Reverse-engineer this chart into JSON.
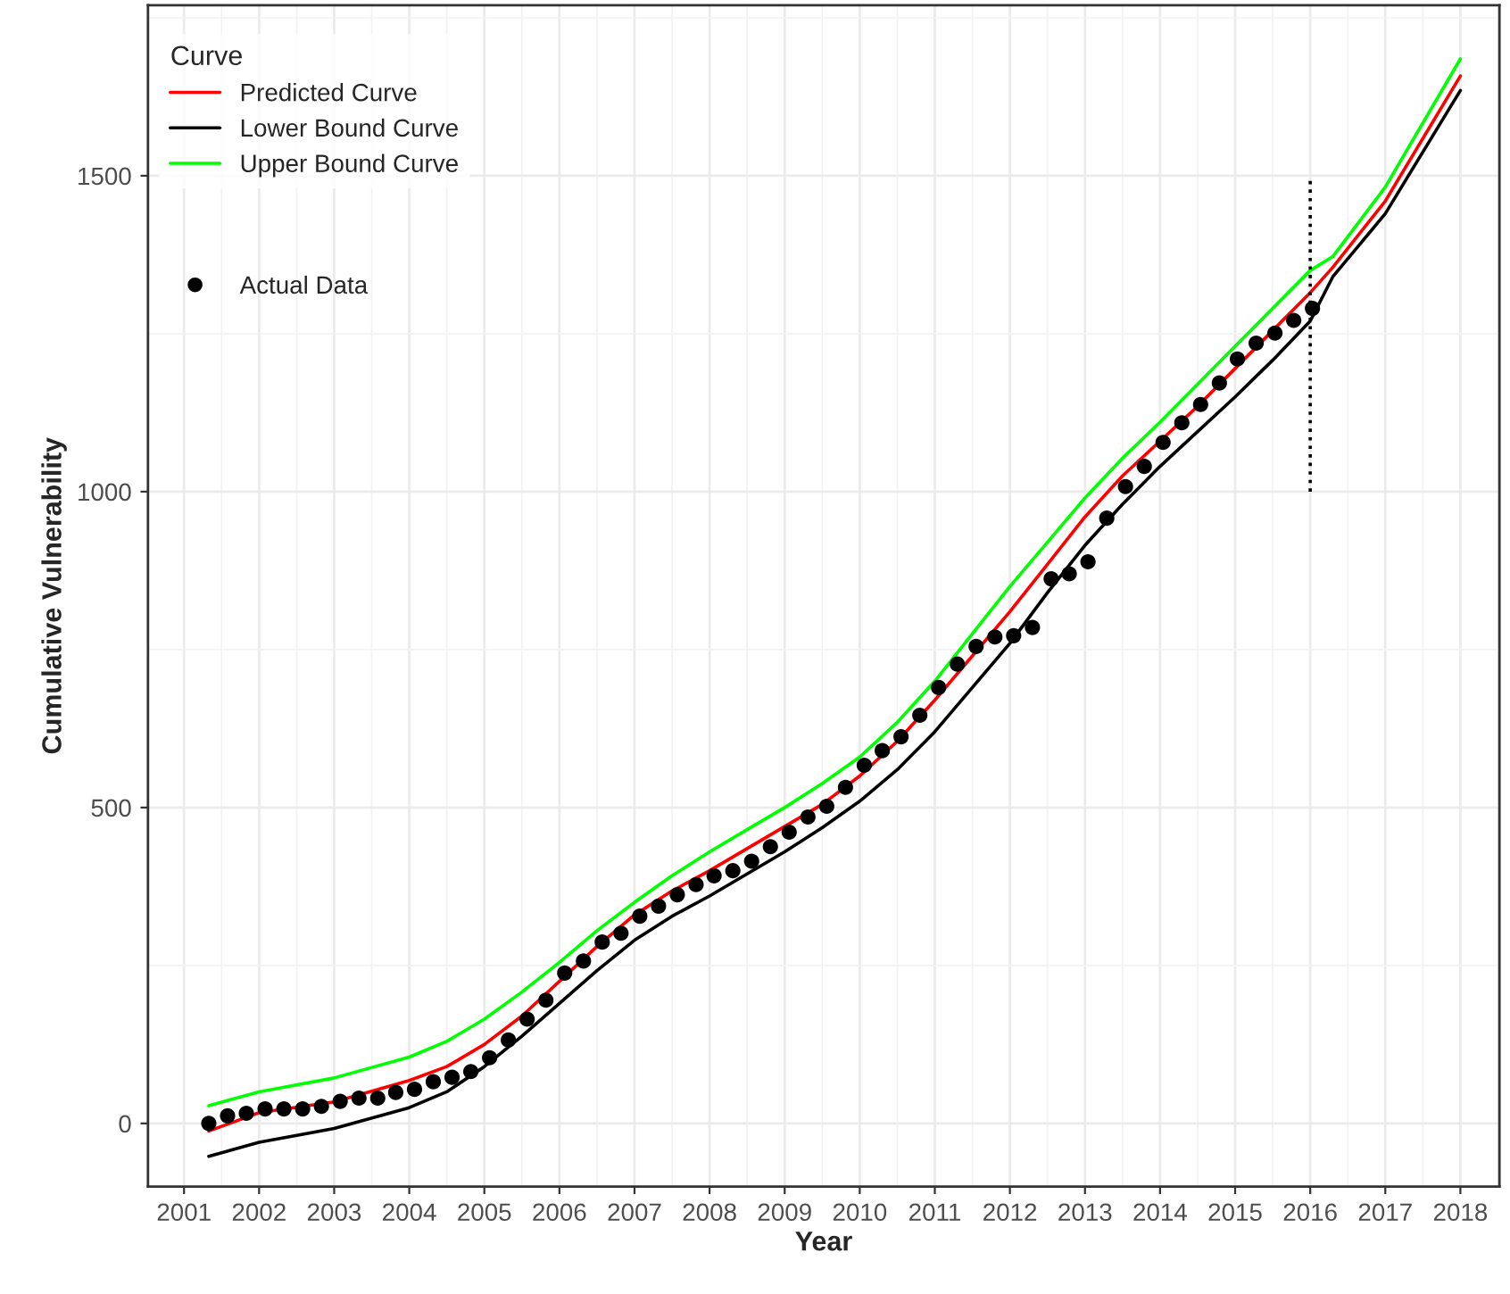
{
  "chart_data": {
    "type": "line",
    "xlabel": "Year",
    "ylabel": "Cumulative Vulnerability",
    "legend_title": "Curve",
    "xlim": [
      2000.52,
      2018.52
    ],
    "ylim": [
      -100,
      1770
    ],
    "xticks": [
      2001,
      2002,
      2003,
      2004,
      2005,
      2006,
      2007,
      2008,
      2009,
      2010,
      2011,
      2012,
      2013,
      2014,
      2015,
      2016,
      2017,
      2018
    ],
    "yticks": [
      0,
      500,
      1000,
      1500
    ],
    "grid": true,
    "legend": "top left",
    "series": [
      {
        "name": "Predicted Curve",
        "color": "#ff0000",
        "x": [
          2001.33,
          2002,
          2003,
          2004,
          2004.5,
          2005,
          2005.5,
          2006,
          2006.5,
          2007,
          2007.5,
          2008,
          2008.5,
          2009,
          2009.5,
          2010,
          2010.5,
          2011,
          2011.5,
          2012,
          2012.5,
          2013,
          2013.5,
          2014,
          2014.5,
          2015,
          2015.5,
          2016,
          2016.3,
          2017,
          2018
        ],
        "values": [
          -12,
          17,
          34,
          68,
          90,
          125,
          170,
          225,
          280,
          330,
          368,
          400,
          435,
          470,
          505,
          550,
          605,
          670,
          740,
          810,
          885,
          960,
          1025,
          1080,
          1135,
          1195,
          1255,
          1315,
          1355,
          1460,
          1658
        ]
      },
      {
        "name": "Lower Bound Curve",
        "color": "#000000",
        "x": [
          2001.33,
          2002,
          2003,
          2004,
          2004.5,
          2005,
          2005.5,
          2006,
          2006.5,
          2007,
          2007.5,
          2008,
          2008.5,
          2009,
          2009.5,
          2010,
          2010.5,
          2011,
          2011.5,
          2012,
          2012.5,
          2013,
          2013.5,
          2014,
          2014.5,
          2015,
          2015.5,
          2016,
          2016.3,
          2017,
          2018
        ],
        "values": [
          -52,
          -30,
          -8,
          25,
          50,
          90,
          138,
          190,
          242,
          290,
          328,
          360,
          395,
          430,
          468,
          510,
          560,
          620,
          690,
          760,
          840,
          915,
          980,
          1040,
          1095,
          1150,
          1208,
          1270,
          1340,
          1440,
          1635
        ]
      },
      {
        "name": "Upper Bound Curve",
        "color": "#00ff00",
        "x": [
          2001.33,
          2002,
          2003,
          2004,
          2004.5,
          2005,
          2005.5,
          2006,
          2006.5,
          2007,
          2007.5,
          2008,
          2008.5,
          2009,
          2009.5,
          2010,
          2010.5,
          2011,
          2011.5,
          2012,
          2012.5,
          2013,
          2013.5,
          2014,
          2014.5,
          2015,
          2015.5,
          2016,
          2016.3,
          2017,
          2018
        ],
        "values": [
          28,
          50,
          72,
          105,
          130,
          165,
          208,
          255,
          305,
          350,
          392,
          430,
          465,
          500,
          538,
          580,
          635,
          700,
          775,
          850,
          920,
          990,
          1053,
          1110,
          1170,
          1230,
          1290,
          1350,
          1372,
          1482,
          1685
        ]
      },
      {
        "name": "Actual Data",
        "type": "scatter",
        "color": "#000000",
        "marker": "circle",
        "x": [
          2001.33,
          2001.58,
          2001.83,
          2002.08,
          2002.33,
          2002.58,
          2002.83,
          2003.08,
          2003.33,
          2003.58,
          2003.82,
          2004.07,
          2004.32,
          2004.57,
          2004.82,
          2005.07,
          2005.32,
          2005.57,
          2005.82,
          2006.07,
          2006.32,
          2006.57,
          2006.82,
          2007.07,
          2007.32,
          2007.57,
          2007.82,
          2008.06,
          2008.31,
          2008.56,
          2008.81,
          2009.06,
          2009.31,
          2009.56,
          2009.81,
          2010.06,
          2010.3,
          2010.55,
          2010.8,
          2011.05,
          2011.3,
          2011.55,
          2011.8,
          2012.05,
          2012.3,
          2012.55,
          2012.79,
          2013.04,
          2013.29,
          2013.54,
          2013.79,
          2014.04,
          2014.29,
          2014.54,
          2014.79,
          2015.03,
          2015.28,
          2015.53,
          2015.78,
          2016.03
        ],
        "values": [
          0,
          12,
          16,
          23,
          23,
          23,
          27,
          35,
          40,
          40,
          49,
          54,
          66,
          73,
          82,
          104,
          132,
          165,
          195,
          238,
          257,
          287,
          301,
          328,
          344,
          362,
          378,
          392,
          400,
          415,
          438,
          461,
          485,
          502,
          532,
          567,
          590,
          612,
          646,
          690,
          727,
          755,
          770,
          772,
          785,
          862,
          870,
          889,
          958,
          1008,
          1040,
          1078,
          1109,
          1138,
          1172,
          1210,
          1235,
          1251,
          1271,
          1290
        ]
      },
      {
        "color": "#000000",
        "line_style": "dotted",
        "x": [
          2016,
          2016
        ],
        "values": [
          1000,
          1500
        ]
      }
    ]
  }
}
